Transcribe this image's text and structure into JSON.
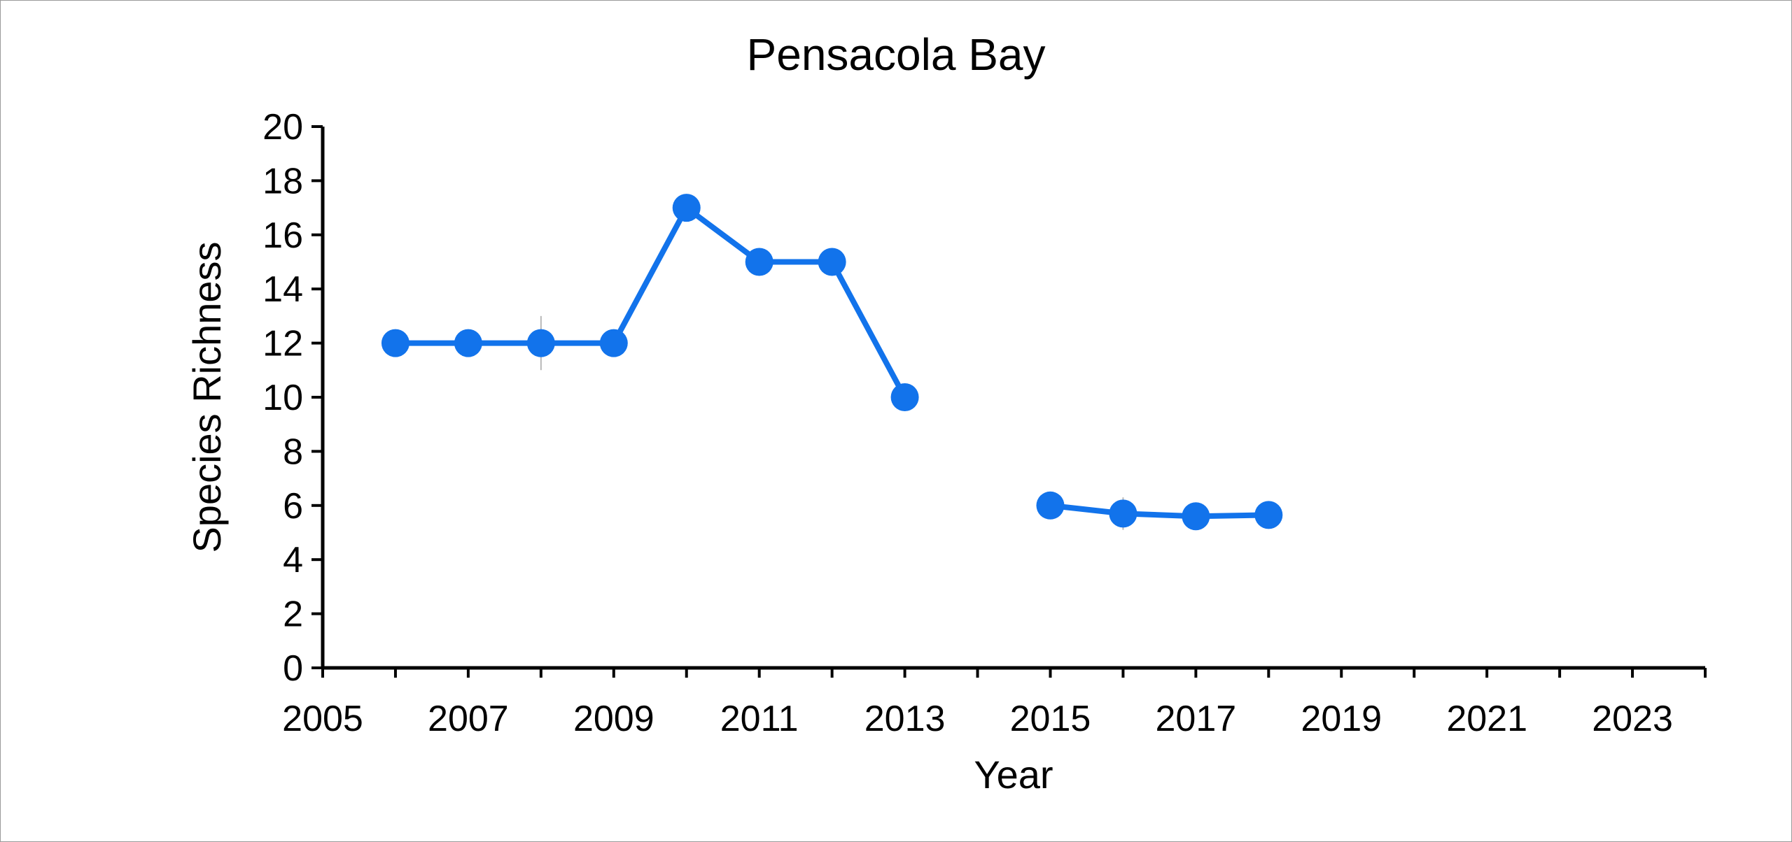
{
  "chart_data": {
    "type": "line",
    "title": "Pensacola Bay",
    "xlabel": "Year",
    "ylabel": "Species Richness",
    "xlim": [
      2005,
      2024
    ],
    "ylim": [
      0,
      20
    ],
    "x_ticks": [
      2005,
      2007,
      2009,
      2011,
      2013,
      2015,
      2017,
      2019,
      2021,
      2023
    ],
    "y_ticks": [
      0,
      2,
      4,
      6,
      8,
      10,
      12,
      14,
      16,
      18,
      20
    ],
    "grid": false,
    "legend": "none",
    "series": [
      {
        "color": "#1273EB",
        "segments": [
          [
            {
              "x": 2006,
              "y": 12
            },
            {
              "x": 2007,
              "y": 12
            },
            {
              "x": 2008,
              "y": 12,
              "error": 1
            },
            {
              "x": 2009,
              "y": 12
            },
            {
              "x": 2010,
              "y": 17
            },
            {
              "x": 2011,
              "y": 15
            },
            {
              "x": 2012,
              "y": 15
            },
            {
              "x": 2013,
              "y": 10
            }
          ],
          [
            {
              "x": 2015,
              "y": 6
            },
            {
              "x": 2016,
              "y": 5.7,
              "error": 0.6
            },
            {
              "x": 2017,
              "y": 5.6
            },
            {
              "x": 2018,
              "y": 5.65
            }
          ]
        ]
      }
    ]
  }
}
